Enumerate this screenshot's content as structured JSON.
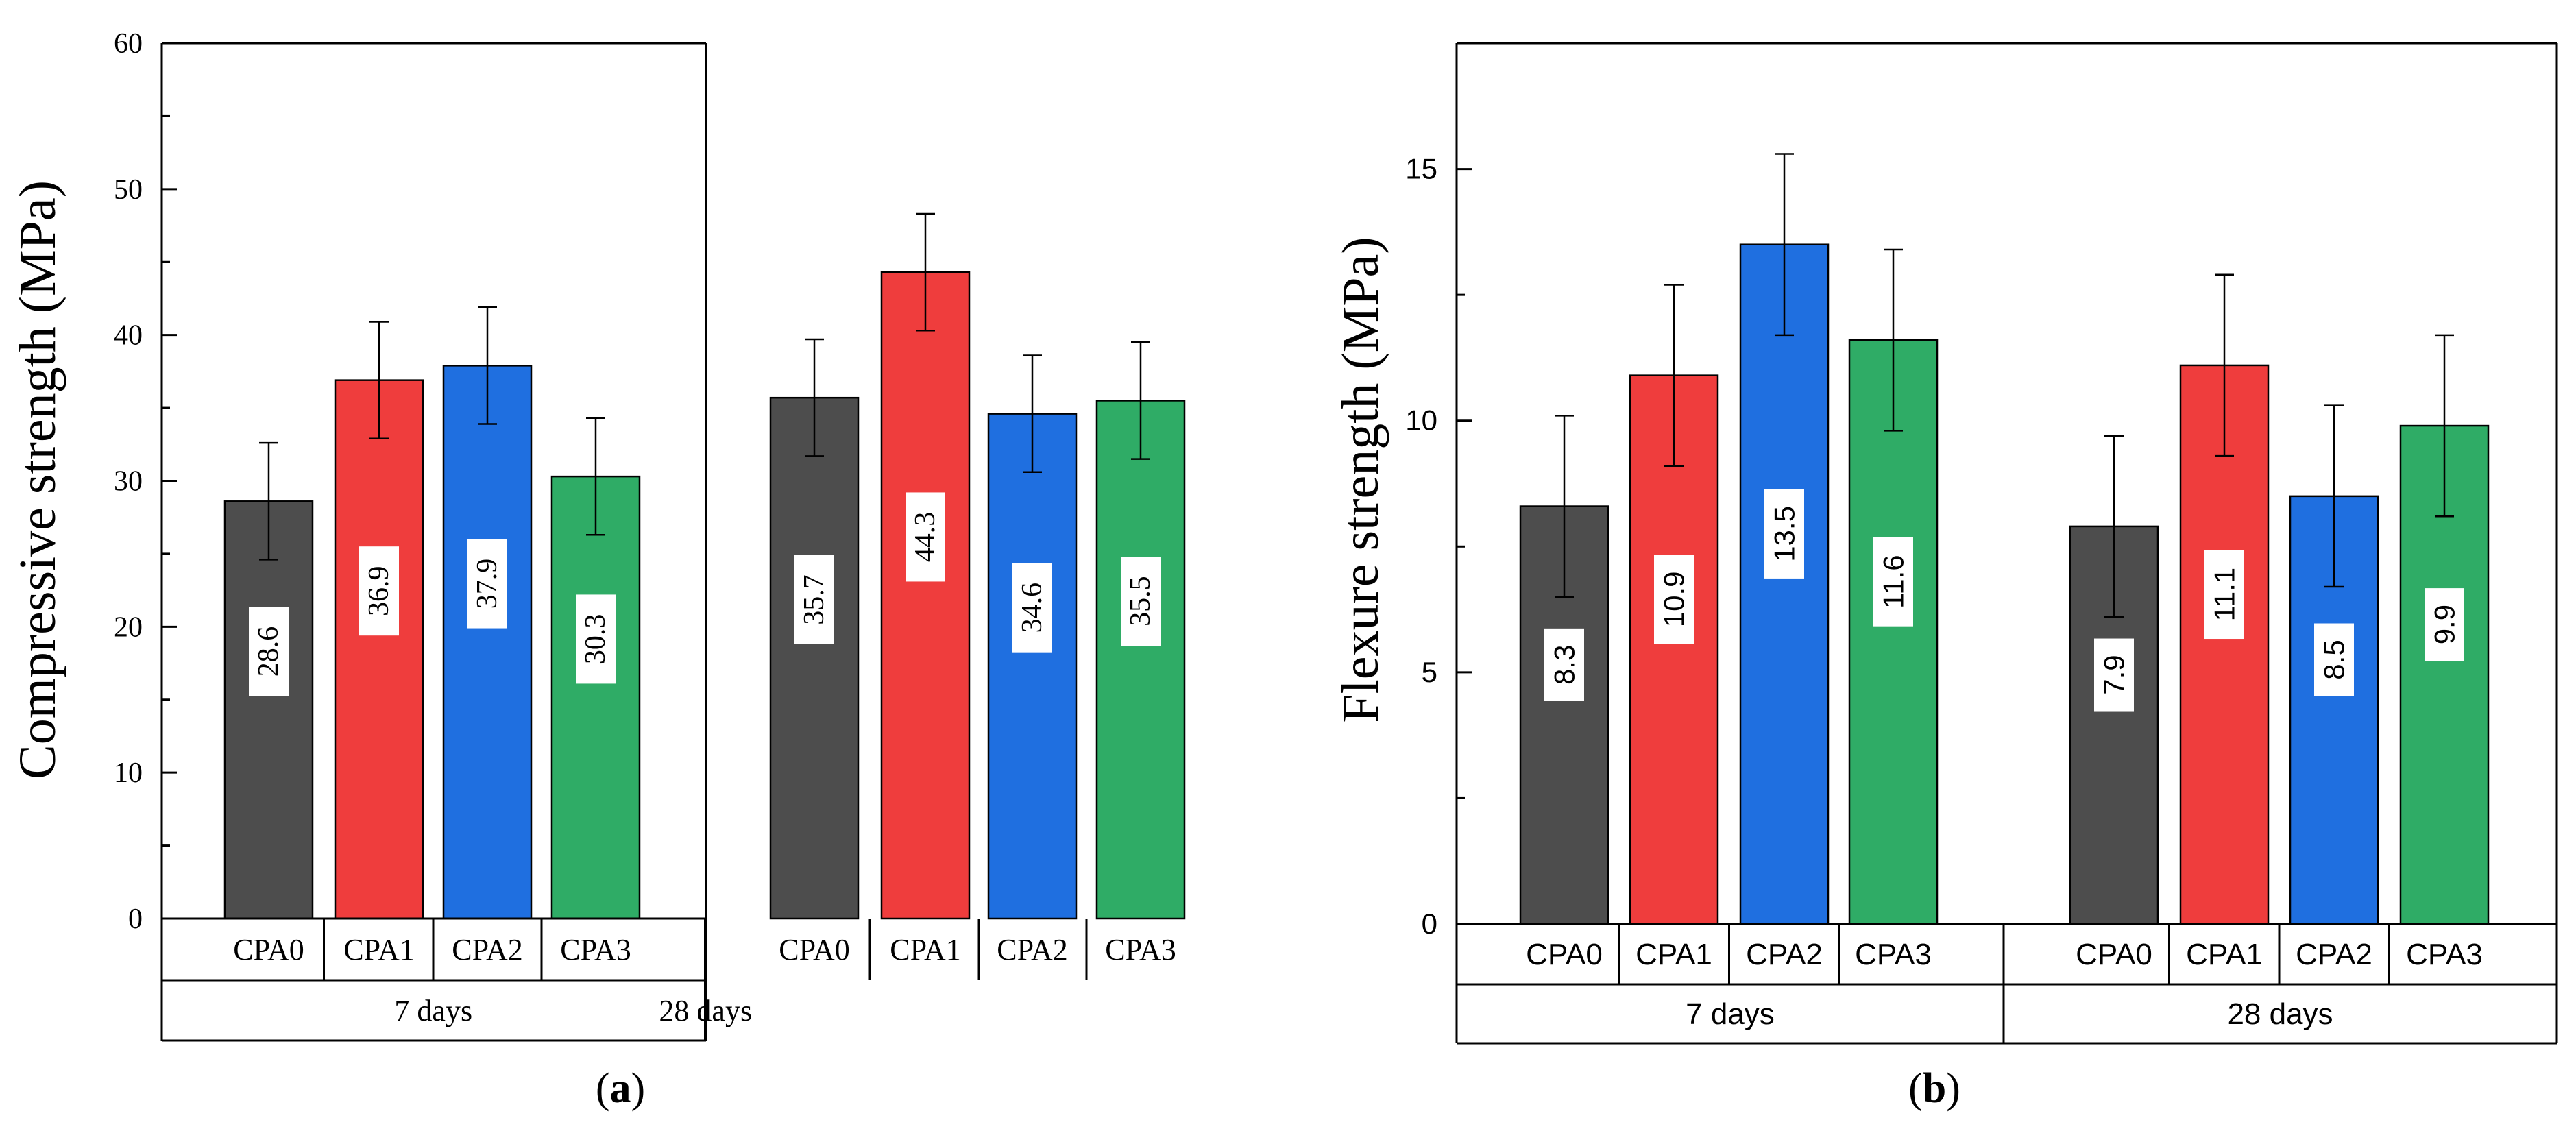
{
  "chart_data": [
    {
      "type": "bar",
      "panel_label": "a",
      "ylabel": "Compressive strength (MPa)",
      "ylim": [
        0,
        60
      ],
      "yticks": [
        "0",
        "10",
        "20",
        "30",
        "40",
        "50",
        "60"
      ],
      "groups": [
        "7 days",
        "28 days"
      ],
      "categories": [
        "CPA0",
        "CPA1",
        "CPA2",
        "CPA3"
      ],
      "series": [
        {
          "group": "7 days",
          "values": [
            28.6,
            36.9,
            37.9,
            30.3
          ],
          "errors": [
            4.0,
            4.0,
            4.0,
            4.0
          ],
          "labels": [
            "28.6",
            "36.9",
            "37.9",
            "30.3"
          ]
        },
        {
          "group": "28 days",
          "values": [
            35.7,
            44.3,
            34.6,
            35.5
          ],
          "errors": [
            4.0,
            4.0,
            4.0,
            4.0
          ],
          "labels": [
            "35.7",
            "44.3",
            "34.6",
            "35.5"
          ]
        }
      ],
      "colors": [
        "#4d4d4d",
        "#ef3d3d",
        "#1f6fe0",
        "#2fac66"
      ],
      "font": "serif"
    },
    {
      "type": "bar",
      "panel_label": "b",
      "ylabel": "Flexure strength (MPa)",
      "ylim": [
        0,
        17.5
      ],
      "yticks": [
        "0",
        "5",
        "10",
        "15"
      ],
      "groups": [
        "7 days",
        "28 days"
      ],
      "categories": [
        "CPA0",
        "CPA1",
        "CPA2",
        "CPA3"
      ],
      "series": [
        {
          "group": "7 days",
          "values": [
            8.3,
            10.9,
            13.5,
            11.6
          ],
          "errors": [
            1.8,
            1.8,
            1.8,
            1.8
          ],
          "labels": [
            "8.3",
            "10.9",
            "13.5",
            "11.6"
          ]
        },
        {
          "group": "28 days",
          "values": [
            7.9,
            11.1,
            8.5,
            9.9
          ],
          "errors": [
            1.8,
            1.8,
            1.8,
            1.8
          ],
          "labels": [
            "7.9",
            "11.1",
            "8.5",
            "9.9"
          ]
        }
      ],
      "colors": [
        "#4d4d4d",
        "#ef3d3d",
        "#1f6fe0",
        "#2fac66"
      ],
      "font": "sans"
    }
  ]
}
